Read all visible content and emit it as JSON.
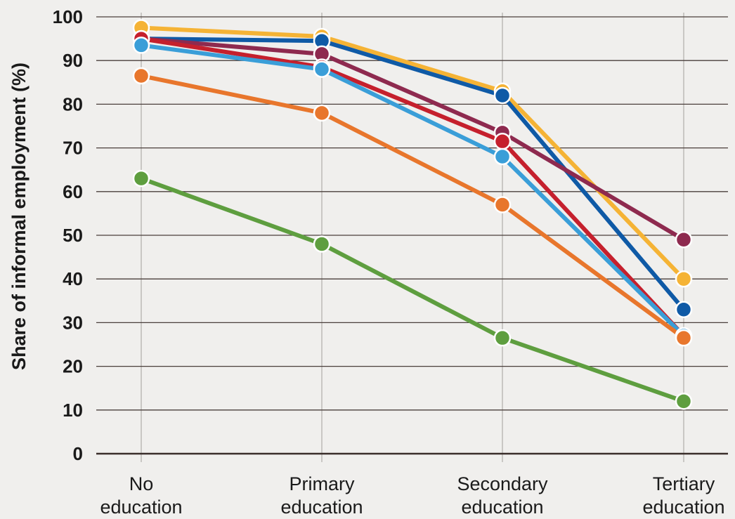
{
  "chart_data": {
    "type": "line",
    "title": "",
    "xlabel": "",
    "ylabel": "Share of informal employment (%)",
    "ylim": [
      0,
      100
    ],
    "yticks": [
      0,
      10,
      20,
      30,
      40,
      50,
      60,
      70,
      80,
      90,
      100
    ],
    "categories": [
      [
        "No",
        "education"
      ],
      [
        "Primary",
        "education"
      ],
      [
        "Secondary",
        "education"
      ],
      [
        "Tertiary",
        "education"
      ]
    ],
    "grid": true,
    "legend": "none",
    "series": [
      {
        "color": "#f5b335",
        "values": [
          97.5,
          95.5,
          83,
          40
        ]
      },
      {
        "color": "#0f5aa6",
        "values": [
          95,
          94.5,
          82,
          33
        ]
      },
      {
        "color": "#8e2a4f",
        "values": [
          95,
          91.5,
          73.5,
          49
        ]
      },
      {
        "color": "#c5202d",
        "values": [
          95,
          88.5,
          71.5,
          27
        ]
      },
      {
        "color": "#3a9ed8",
        "values": [
          93.5,
          88,
          68,
          27
        ]
      },
      {
        "color": "#e8762c",
        "values": [
          86.5,
          78,
          57,
          26.5
        ]
      },
      {
        "color": "#5e9e3f",
        "values": [
          63,
          48,
          26.5,
          12
        ]
      }
    ]
  }
}
